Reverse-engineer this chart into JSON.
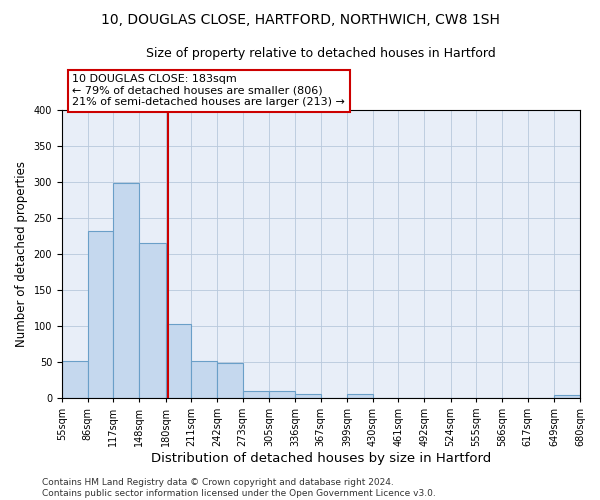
{
  "title1": "10, DOUGLAS CLOSE, HARTFORD, NORTHWICH, CW8 1SH",
  "title2": "Size of property relative to detached houses in Hartford",
  "xlabel": "Distribution of detached houses by size in Hartford",
  "ylabel": "Number of detached properties",
  "bar_edges": [
    55,
    86,
    117,
    148,
    180,
    211,
    242,
    273,
    305,
    336,
    367,
    399,
    430,
    461,
    492,
    524,
    555,
    586,
    617,
    649,
    680
  ],
  "bar_heights": [
    52,
    232,
    299,
    215,
    103,
    52,
    49,
    9,
    9,
    6,
    0,
    5,
    0,
    0,
    0,
    0,
    0,
    0,
    0,
    4
  ],
  "bar_color": "#c5d8ee",
  "bar_edgecolor": "#6a9fc8",
  "property_size": 183,
  "vline_color": "#cc0000",
  "annotation_line1": "10 DOUGLAS CLOSE: 183sqm",
  "annotation_line2": "← 79% of detached houses are smaller (806)",
  "annotation_line3": "21% of semi-detached houses are larger (213) →",
  "annotation_box_edgecolor": "#cc0000",
  "annotation_box_facecolor": "#ffffff",
  "ylim": [
    0,
    400
  ],
  "yticks": [
    0,
    50,
    100,
    150,
    200,
    250,
    300,
    350,
    400
  ],
  "bg_color": "#e8eef8",
  "footer_text": "Contains HM Land Registry data © Crown copyright and database right 2024.\nContains public sector information licensed under the Open Government Licence v3.0.",
  "title1_fontsize": 10,
  "title2_fontsize": 9,
  "xlabel_fontsize": 9.5,
  "ylabel_fontsize": 8.5,
  "tick_fontsize": 7,
  "annotation_fontsize": 8,
  "footer_fontsize": 6.5
}
